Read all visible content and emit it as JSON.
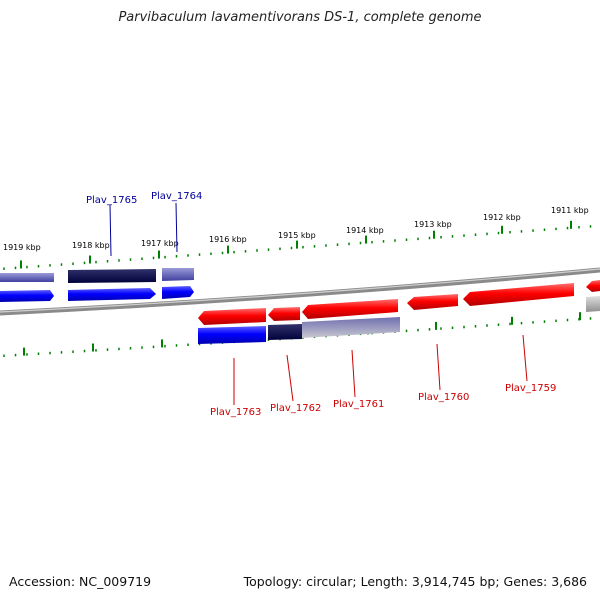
{
  "title": "Parvibaculum lavamentivorans DS-1, complete genome",
  "footer": {
    "accession": "Accession: NC_009719",
    "summary": "Topology: circular; Length: 3,914,745 bp; Genes: 3,686"
  },
  "colors": {
    "forward_strand": "#ff0000",
    "reverse_strand": "#0000ff",
    "forward_label": "#cc0000",
    "reverse_label": "#000099",
    "ticks": "#008000",
    "backbone": "#808080"
  },
  "scale_ticks": [
    {
      "label": "1919 kbp",
      "value": 1919
    },
    {
      "label": "1918 kbp",
      "value": 1918
    },
    {
      "label": "1917 kbp",
      "value": 1917
    },
    {
      "label": "1916 kbp",
      "value": 1916
    },
    {
      "label": "1915 kbp",
      "value": 1915
    },
    {
      "label": "1914 kbp",
      "value": 1914
    },
    {
      "label": "1913 kbp",
      "value": 1913
    },
    {
      "label": "1912 kbp",
      "value": 1912
    },
    {
      "label": "1911 kbp",
      "value": 1911
    }
  ],
  "genes": [
    {
      "label": "Plav_1765",
      "strand": "reverse"
    },
    {
      "label": "Plav_1764",
      "strand": "reverse"
    },
    {
      "label": "Plav_1763",
      "strand": "forward"
    },
    {
      "label": "Plav_1762",
      "strand": "forward"
    },
    {
      "label": "Plav_1761",
      "strand": "forward"
    },
    {
      "label": "Plav_1760",
      "strand": "forward"
    },
    {
      "label": "Plav_1759",
      "strand": "forward"
    }
  ]
}
